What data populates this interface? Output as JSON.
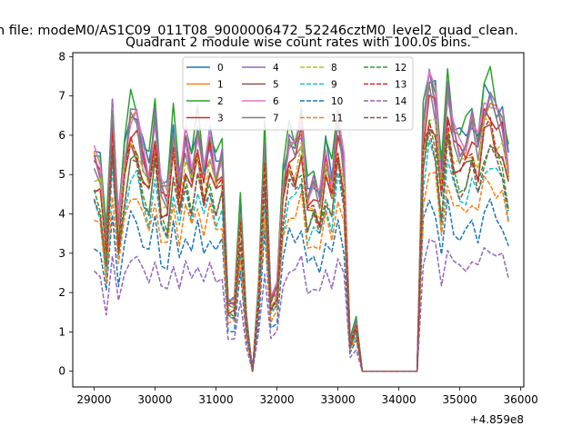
{
  "chart_data": {
    "type": "line",
    "suptitle": "n file: modeM0/AS1C09_011T08_9000006472_52246cztM0_level2_quad_clean.",
    "title": "Quadrant 2 module wise count rates with 100.0s bins.",
    "xlabel": "",
    "ylabel": "",
    "x_offset_label": "+4.859e8",
    "xlim": [
      28650,
      36050
    ],
    "ylim": [
      -0.4,
      8.1
    ],
    "xticks": [
      29000,
      30000,
      31000,
      32000,
      33000,
      34000,
      35000,
      36000
    ],
    "yticks": [
      0,
      1,
      2,
      3,
      4,
      5,
      6,
      7,
      8
    ],
    "grid": false,
    "legend_position": "upper-center",
    "x": [
      29000,
      29100,
      29200,
      29300,
      29400,
      29500,
      29600,
      29700,
      29800,
      29900,
      30000,
      30100,
      30200,
      30300,
      30400,
      30500,
      30600,
      30700,
      30800,
      30900,
      31000,
      31100,
      31200,
      31300,
      31400,
      31500,
      31600,
      31700,
      31800,
      31900,
      32000,
      32100,
      32200,
      32300,
      32400,
      32500,
      32600,
      32700,
      32800,
      32900,
      33000,
      33100,
      33200,
      33300,
      33400,
      33500,
      33600,
      33700,
      33800,
      33900,
      34000,
      34100,
      34200,
      34300,
      34400,
      34500,
      34600,
      34700,
      34800,
      34900,
      35000,
      35100,
      35200,
      35300,
      35400,
      35500,
      35600,
      35700,
      35800
    ],
    "base": [
      5.6,
      5.3,
      3.4,
      6.8,
      3.9,
      5.6,
      6.7,
      6.6,
      5.7,
      5.2,
      6.6,
      4.8,
      4.6,
      6.3,
      4.9,
      6.1,
      5.3,
      6.3,
      5.2,
      6.0,
      5.2,
      5.6,
      1.8,
      1.8,
      4.2,
      1.4,
      0.0,
      2.2,
      5.9,
      1.9,
      2.2,
      4.9,
      6.0,
      5.8,
      6.4,
      4.6,
      4.9,
      4.5,
      5.7,
      5.0,
      6.6,
      5.4,
      0.8,
      1.3,
      0.0,
      0.0,
      0.0,
      0.0,
      0.0,
      0.0,
      0.0,
      0.0,
      0.0,
      0.0,
      6.4,
      7.6,
      7.1,
      5.0,
      7.3,
      6.2,
      5.9,
      6.0,
      6.5,
      5.9,
      7.0,
      7.2,
      6.7,
      6.5,
      5.4
    ],
    "series": [
      {
        "name": "0",
        "color": "#1f77b4",
        "dash": "solid",
        "scale": 1.0
      },
      {
        "name": "1",
        "color": "#ff7f0e",
        "dash": "solid",
        "scale": 0.96
      },
      {
        "name": "2",
        "color": "#2ca02c",
        "dash": "solid",
        "scale": 1.03
      },
      {
        "name": "3",
        "color": "#d62728",
        "dash": "solid",
        "scale": 0.93
      },
      {
        "name": "4",
        "color": "#9467bd",
        "dash": "solid",
        "scale": 0.97
      },
      {
        "name": "5",
        "color": "#8c564b",
        "dash": "solid",
        "scale": 0.85
      },
      {
        "name": "6",
        "color": "#e377c2",
        "dash": "solid",
        "scale": 0.98
      },
      {
        "name": "7",
        "color": "#7f7f7f",
        "dash": "solid",
        "scale": 0.94
      },
      {
        "name": "8",
        "color": "#bcbd22",
        "dash": "dashed",
        "scale": 0.88
      },
      {
        "name": "9",
        "color": "#17becf",
        "dash": "dashed",
        "scale": 0.74
      },
      {
        "name": "10",
        "color": "#1f77b4",
        "dash": "dashed",
        "scale": 0.58
      },
      {
        "name": "11",
        "color": "#ff7f0e",
        "dash": "dashed",
        "scale": 0.68
      },
      {
        "name": "12",
        "color": "#2ca02c",
        "dash": "dashed",
        "scale": 0.8
      },
      {
        "name": "13",
        "color": "#d62728",
        "dash": "dashed",
        "scale": 0.86
      },
      {
        "name": "14",
        "color": "#9467bd",
        "dash": "dashed",
        "scale": 0.44
      },
      {
        "name": "15",
        "color": "#8c564b",
        "dash": "dashed",
        "scale": 0.78
      }
    ]
  }
}
